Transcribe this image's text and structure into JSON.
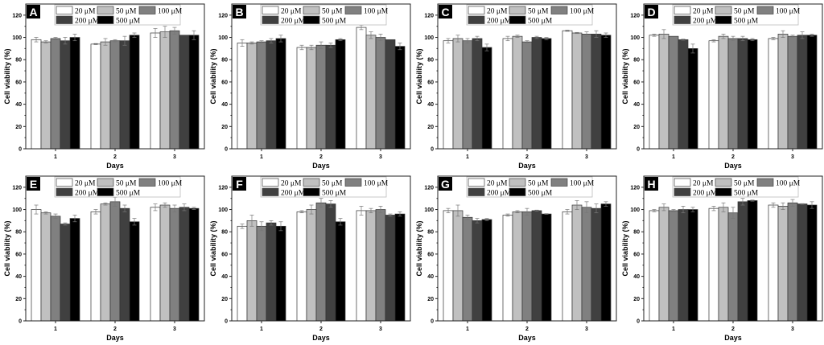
{
  "chart_data": {
    "type": "bar",
    "layout": "2 rows x 4 columns of grouped bar charts with error bars",
    "shared": {
      "categories": [
        "1",
        "2",
        "3"
      ],
      "xlabel": "Days",
      "ylabel": "Cell viability (%)",
      "ylim": [
        0,
        130
      ],
      "yticks": [
        0,
        20,
        40,
        60,
        80,
        100,
        120
      ],
      "grid": false,
      "legend_placement": "top",
      "series_names": [
        "20 μM",
        "50 μM",
        "100 μM",
        "200 μM",
        "500 μM"
      ],
      "series_colors": [
        "#ffffff",
        "#c0c0c0",
        "#808080",
        "#404040",
        "#000000"
      ]
    },
    "panels": [
      {
        "label": "A",
        "series": [
          {
            "name": "20 μM",
            "values": [
              98,
              94,
              104
            ],
            "errors": [
              2,
              0.5,
              4
            ]
          },
          {
            "name": "50 μM",
            "values": [
              96,
              96,
              105
            ],
            "errors": [
              1,
              3,
              5
            ]
          },
          {
            "name": "100 μM",
            "values": [
              99,
              97,
              106
            ],
            "errors": [
              1,
              1,
              3
            ]
          },
          {
            "name": "200 μM",
            "values": [
              97,
              97,
              102
            ],
            "errors": [
              3,
              4,
              0
            ]
          },
          {
            "name": "500 μM",
            "values": [
              100,
              102,
              102
            ],
            "errors": [
              3,
              2,
              4
            ]
          }
        ]
      },
      {
        "label": "B",
        "series": [
          {
            "name": "20 μM",
            "values": [
              95,
              91,
              109
            ],
            "errors": [
              3,
              2,
              2
            ]
          },
          {
            "name": "50 μM",
            "values": [
              95,
              91,
              102
            ],
            "errors": [
              1,
              2,
              3
            ]
          },
          {
            "name": "100 μM",
            "values": [
              96,
              93,
              100
            ],
            "errors": [
              1,
              3,
              3
            ]
          },
          {
            "name": "200 μM",
            "values": [
              97,
              93,
              98
            ],
            "errors": [
              2,
              2,
              0
            ]
          },
          {
            "name": "500 μM",
            "values": [
              99,
              98,
              92
            ],
            "errors": [
              3,
              1,
              3
            ]
          }
        ]
      },
      {
        "label": "C",
        "series": [
          {
            "name": "20 μM",
            "values": [
              97,
              99,
              106
            ],
            "errors": [
              2,
              2,
              0.5
            ]
          },
          {
            "name": "50 μM",
            "values": [
              99,
              101,
              104
            ],
            "errors": [
              3,
              1,
              0.5
            ]
          },
          {
            "name": "100 μM",
            "values": [
              97,
              96,
              103
            ],
            "errors": [
              2,
              1,
              2
            ]
          },
          {
            "name": "200 μM",
            "values": [
              99,
              100,
              103
            ],
            "errors": [
              2,
              1,
              3
            ]
          },
          {
            "name": "500 μM",
            "values": [
              91,
              99,
              102
            ],
            "errors": [
              3,
              1,
              2
            ]
          }
        ]
      },
      {
        "label": "D",
        "series": [
          {
            "name": "20 μM",
            "values": [
              102,
              97,
              99
            ],
            "errors": [
              1,
              1,
              1
            ]
          },
          {
            "name": "50 μM",
            "values": [
              103,
              101,
              103
            ],
            "errors": [
              4,
              2,
              3
            ]
          },
          {
            "name": "100 μM",
            "values": [
              101,
              99,
              101
            ],
            "errors": [
              0,
              2,
              1
            ]
          },
          {
            "name": "200 μM",
            "values": [
              98,
              99,
              102
            ],
            "errors": [
              0.5,
              2,
              3
            ]
          },
          {
            "name": "500 μM",
            "values": [
              90,
              98,
              102
            ],
            "errors": [
              4,
              1,
              1
            ]
          }
        ]
      },
      {
        "label": "E",
        "series": [
          {
            "name": "20 μM",
            "values": [
              100,
              98,
              102
            ],
            "errors": [
              4,
              2,
              3
            ]
          },
          {
            "name": "50 μM",
            "values": [
              97,
              105,
              104
            ],
            "errors": [
              1,
              1,
              2
            ]
          },
          {
            "name": "100 μM",
            "values": [
              94,
              107,
              101
            ],
            "errors": [
              2,
              4,
              3
            ]
          },
          {
            "name": "200 μM",
            "values": [
              87,
              101,
              102
            ],
            "errors": [
              1,
              3,
              3
            ]
          },
          {
            "name": "500 μM",
            "values": [
              92,
              89,
              101
            ],
            "errors": [
              3,
              3,
              1
            ]
          }
        ]
      },
      {
        "label": "F",
        "series": [
          {
            "name": "20 μM",
            "values": [
              85,
              98,
              99
            ],
            "errors": [
              2,
              1,
              4
            ]
          },
          {
            "name": "50 μM",
            "values": [
              90,
              100,
              99
            ],
            "errors": [
              5,
              4,
              2
            ]
          },
          {
            "name": "100 μM",
            "values": [
              85,
              106,
              100
            ],
            "errors": [
              4,
              4,
              3
            ]
          },
          {
            "name": "200 μM",
            "values": [
              88,
              105,
              95
            ],
            "errors": [
              2,
              3,
              1
            ]
          },
          {
            "name": "500 μM",
            "values": [
              85,
              89,
              96
            ],
            "errors": [
              4,
              3,
              2
            ]
          }
        ]
      },
      {
        "label": "G",
        "series": [
          {
            "name": "20 μM",
            "values": [
              99,
              95,
              98
            ],
            "errors": [
              2,
              1,
              2
            ]
          },
          {
            "name": "50 μM",
            "values": [
              99,
              98,
              104
            ],
            "errors": [
              5,
              1,
              4
            ]
          },
          {
            "name": "100 μM",
            "values": [
              93,
              98,
              102
            ],
            "errors": [
              2,
              3,
              5
            ]
          },
          {
            "name": "200 μM",
            "values": [
              90,
              99,
              101
            ],
            "errors": [
              2,
              0.5,
              4
            ]
          },
          {
            "name": "500 μM",
            "values": [
              91,
              96,
              105
            ],
            "errors": [
              1,
              0.3,
              2
            ]
          }
        ]
      },
      {
        "label": "H",
        "series": [
          {
            "name": "20 μM",
            "values": [
              99,
              101,
              104
            ],
            "errors": [
              1,
              2,
              2
            ]
          },
          {
            "name": "50 μM",
            "values": [
              102,
              102,
              103
            ],
            "errors": [
              3,
              4,
              3
            ]
          },
          {
            "name": "100 μM",
            "values": [
              99,
              97,
              106
            ],
            "errors": [
              1,
              5,
              3
            ]
          },
          {
            "name": "200 μM",
            "values": [
              100,
              107,
              105
            ],
            "errors": [
              3,
              3,
              0.3
            ]
          },
          {
            "name": "500 μM",
            "values": [
              100,
              108,
              104
            ],
            "errors": [
              2,
              0.5,
              3
            ]
          }
        ]
      }
    ]
  }
}
